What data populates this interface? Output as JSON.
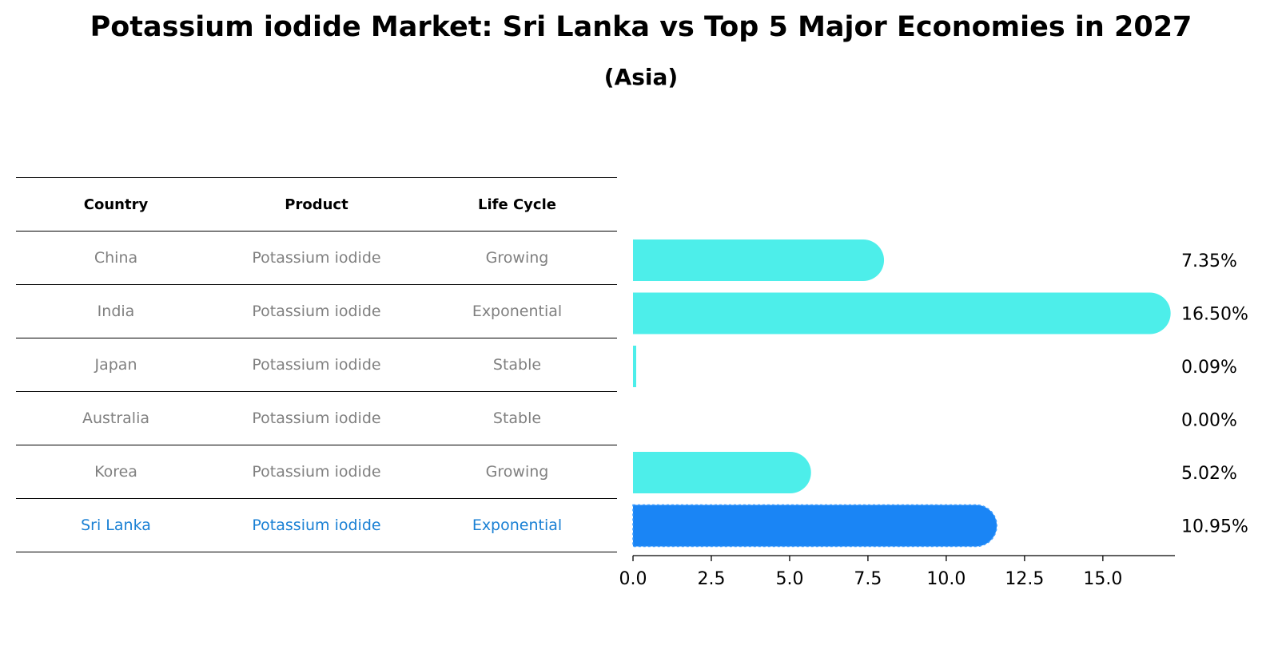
{
  "title": "Potassium iodide Market: Sri Lanka vs Top 5 Major Economies in 2027",
  "subtitle": "(Asia)",
  "table": {
    "headers": [
      "Country",
      "Product",
      "Life Cycle"
    ],
    "rows": [
      {
        "country": "China",
        "product": "Potassium iodide",
        "life_cycle": "Growing"
      },
      {
        "country": "India",
        "product": "Potassium iodide",
        "life_cycle": "Exponential"
      },
      {
        "country": "Japan",
        "product": "Potassium iodide",
        "life_cycle": "Stable"
      },
      {
        "country": "Australia",
        "product": "Potassium iodide",
        "life_cycle": "Stable"
      },
      {
        "country": "Korea",
        "product": "Potassium iodide",
        "life_cycle": "Growing"
      },
      {
        "country": "Sri Lanka",
        "product": "Potassium iodide",
        "life_cycle": "Exponential"
      }
    ]
  },
  "colors": {
    "bar": "#4deeea",
    "highlight_bar": "#1a85f5",
    "highlight_text": "#1a80d4",
    "muted_text": "#808080"
  },
  "chart_data": {
    "type": "bar",
    "orientation": "horizontal",
    "categories": [
      "China",
      "India",
      "Japan",
      "Australia",
      "Korea",
      "Sri Lanka"
    ],
    "values": [
      7.35,
      16.5,
      0.09,
      0.0,
      5.02,
      10.95
    ],
    "value_labels": [
      "7.35%",
      "16.50%",
      "0.09%",
      "0.00%",
      "5.02%",
      "10.95%"
    ],
    "highlight": "Sri Lanka",
    "xlim": [
      0,
      17.3
    ],
    "xticks": [
      0,
      2.5,
      5,
      7.5,
      10,
      12.5,
      15
    ],
    "xtick_labels": [
      "0.0",
      "2.5",
      "5.0",
      "7.5",
      "10.0",
      "12.5",
      "15.0"
    ],
    "grid": false
  }
}
